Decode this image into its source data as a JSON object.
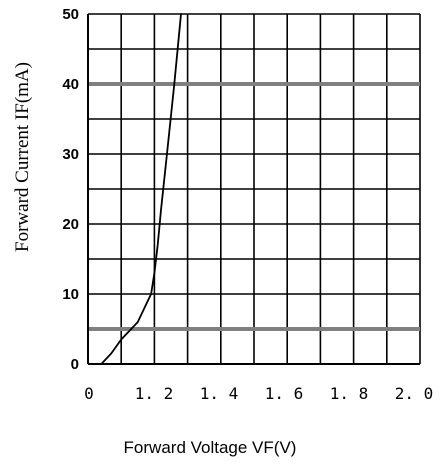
{
  "chart_data": {
    "type": "line",
    "xlabel": "Forward Voltage VF(V)",
    "ylabel": "Forward Current IF(mA)",
    "x_ticks": [
      "0",
      "1. 2",
      "1. 4",
      "1. 6",
      "1. 8",
      "2. 0"
    ],
    "y_ticks": [
      "0",
      "10",
      "20",
      "30",
      "40",
      "50"
    ],
    "xlim": [
      1.0,
      2.0
    ],
    "ylim": [
      0,
      50
    ],
    "grid": true,
    "emphasized_gridlines_y": [
      5,
      40
    ],
    "series": [
      {
        "x": [
          1.04,
          1.07,
          1.1,
          1.13,
          1.15,
          1.17,
          1.19,
          1.2,
          1.21,
          1.22,
          1.24,
          1.26,
          1.28
        ],
        "y": [
          0.0,
          1.5,
          3.5,
          5.0,
          6.0,
          8.0,
          10.0,
          13.0,
          17.0,
          22.0,
          31.0,
          40.0,
          50.0
        ],
        "color": "#000000"
      }
    ]
  }
}
